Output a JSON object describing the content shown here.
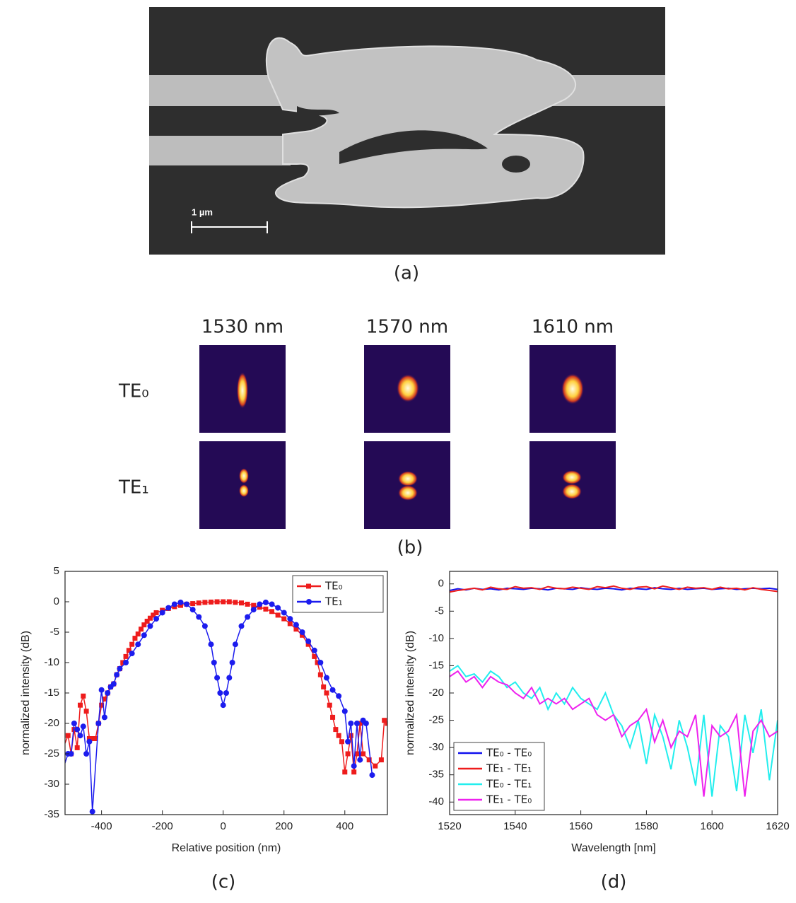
{
  "figure": {
    "panel_labels": [
      "(a)",
      "(b)",
      "(c)",
      "(d)"
    ],
    "scale_bar": "1 µm",
    "wavelengths": [
      "1530 nm",
      "1570 nm",
      "1610 nm"
    ],
    "modes": [
      "TE₀",
      "TE₁"
    ]
  },
  "chart_data": [
    {
      "type": "line",
      "xlabel": "Relative position (nm)",
      "ylabel": "normalized intensity (dB)",
      "xlim": [
        -520,
        540
      ],
      "ylim": [
        -35,
        5
      ],
      "xticks": [
        -400,
        -200,
        0,
        200,
        400
      ],
      "yticks": [
        -35,
        -30,
        -25,
        -20,
        -15,
        -10,
        -5,
        0,
        5
      ],
      "legend": "top-right",
      "series": [
        {
          "name": "TE₀",
          "color": "#ee1c1c",
          "marker": "square",
          "x": [
            -550,
            -510,
            -500,
            -490,
            -480,
            -470,
            -460,
            -450,
            -440,
            -430,
            -420,
            -410,
            -400,
            -390,
            -380,
            -370,
            -360,
            -350,
            -340,
            -330,
            -320,
            -310,
            -300,
            -290,
            -280,
            -270,
            -260,
            -250,
            -240,
            -230,
            -220,
            -200,
            -180,
            -160,
            -140,
            -120,
            -100,
            -80,
            -60,
            -40,
            -20,
            0,
            20,
            40,
            60,
            80,
            100,
            120,
            140,
            160,
            180,
            200,
            220,
            240,
            260,
            280,
            300,
            310,
            320,
            330,
            340,
            350,
            360,
            370,
            380,
            390,
            400,
            410,
            420,
            430,
            440,
            450,
            460,
            480,
            500,
            520,
            530,
            540
          ],
          "values": [
            -27,
            -22,
            -25,
            -21,
            -24,
            -17,
            -15.5,
            -18,
            -22.5,
            -22.5,
            -22.5,
            -20,
            -17,
            -16,
            -15,
            -14,
            -13.5,
            -12,
            -11,
            -10,
            -9,
            -8,
            -7,
            -6,
            -5.3,
            -4.5,
            -3.8,
            -3.2,
            -2.7,
            -2.2,
            -1.8,
            -1.4,
            -1.1,
            -0.8,
            -0.6,
            -0.4,
            -0.3,
            -0.2,
            -0.1,
            -0.05,
            0,
            0,
            0,
            -0.1,
            -0.2,
            -0.4,
            -0.6,
            -0.9,
            -1.2,
            -1.6,
            -2.2,
            -2.8,
            -3.6,
            -4.5,
            -5.5,
            -7,
            -9,
            -10,
            -12,
            -14,
            -15,
            -17,
            -19,
            -21,
            -22,
            -23,
            -28,
            -25,
            -22,
            -28,
            -25,
            -20,
            -25,
            -26,
            -27,
            -26,
            -19.5,
            -20
          ]
        },
        {
          "name": "TE₁",
          "color": "#1c1cee",
          "marker": "circle",
          "x": [
            -540,
            -510,
            -500,
            -490,
            -480,
            -470,
            -460,
            -450,
            -440,
            -430,
            -410,
            -400,
            -390,
            -380,
            -370,
            -360,
            -350,
            -340,
            -320,
            -300,
            -280,
            -260,
            -240,
            -220,
            -200,
            -180,
            -160,
            -140,
            -120,
            -100,
            -80,
            -60,
            -40,
            -30,
            -20,
            -10,
            0,
            10,
            20,
            30,
            40,
            60,
            80,
            100,
            120,
            140,
            160,
            180,
            200,
            220,
            240,
            260,
            280,
            300,
            320,
            340,
            360,
            380,
            400,
            410,
            420,
            430,
            440,
            450,
            460,
            470,
            490
          ],
          "values": [
            -29.5,
            -25,
            -25,
            -20,
            -21,
            -22,
            -20.5,
            -25,
            -23,
            -34.5,
            -20,
            -14.5,
            -19,
            -15,
            -14,
            -13.5,
            -12,
            -11,
            -10,
            -8.5,
            -7,
            -5.5,
            -4,
            -2.8,
            -1.8,
            -1,
            -0.4,
            -0.1,
            -0.4,
            -1.3,
            -2.5,
            -4,
            -7,
            -10,
            -12.5,
            -15,
            -17,
            -15,
            -12.5,
            -10,
            -7,
            -4,
            -2.5,
            -1.3,
            -0.4,
            -0.1,
            -0.4,
            -1,
            -1.8,
            -2.8,
            -3.8,
            -5,
            -6.5,
            -8,
            -10,
            -12.5,
            -14.5,
            -15.5,
            -18,
            -23,
            -20,
            -27,
            -20,
            -26,
            -19.5,
            -20,
            -28.5
          ]
        }
      ]
    },
    {
      "type": "line",
      "xlabel": "Wavelength [nm]",
      "ylabel": "normalized intensity (dB)",
      "xlim": [
        1520,
        1620
      ],
      "ylim": [
        -42.3,
        2.3
      ],
      "xticks": [
        1520,
        1540,
        1560,
        1580,
        1600,
        1620
      ],
      "yticks": [
        0,
        -5,
        -10,
        -15,
        -20,
        -25,
        -30,
        -35,
        -40
      ],
      "legend": "bottom-left",
      "x": [
        1520,
        1522.5,
        1525,
        1527.5,
        1530,
        1532.5,
        1535,
        1537.5,
        1540,
        1542.5,
        1545,
        1547.5,
        1550,
        1552.5,
        1555,
        1557.5,
        1560,
        1562.5,
        1565,
        1567.5,
        1570,
        1572.5,
        1575,
        1577.5,
        1580,
        1582.5,
        1585,
        1587.5,
        1590,
        1592.5,
        1595,
        1597.5,
        1600,
        1602.5,
        1605,
        1607.5,
        1610,
        1612.5,
        1615,
        1617.5,
        1620
      ],
      "series": [
        {
          "name": "TE₀ - TE₀",
          "color": "#1010ee",
          "values": [
            -1.2,
            -0.9,
            -1.1,
            -0.8,
            -1,
            -0.9,
            -1.1,
            -0.8,
            -0.9,
            -1,
            -0.8,
            -0.9,
            -1.1,
            -0.8,
            -0.9,
            -1,
            -0.7,
            -0.9,
            -1,
            -0.8,
            -0.9,
            -1.1,
            -0.8,
            -0.9,
            -1,
            -0.7,
            -0.9,
            -1,
            -0.8,
            -1,
            -0.9,
            -0.8,
            -1,
            -0.9,
            -0.8,
            -1,
            -0.9,
            -0.8,
            -0.9,
            -0.8,
            -1
          ]
        },
        {
          "name": "TE₁ - TE₁",
          "color": "#ee1c1c",
          "values": [
            -1.5,
            -1.2,
            -1,
            -0.8,
            -1.1,
            -0.6,
            -0.9,
            -1,
            -0.5,
            -0.8,
            -0.7,
            -1,
            -0.5,
            -0.8,
            -0.9,
            -0.6,
            -0.8,
            -1,
            -0.5,
            -0.7,
            -0.4,
            -0.8,
            -1,
            -0.6,
            -0.5,
            -0.9,
            -0.4,
            -0.7,
            -1,
            -0.6,
            -0.8,
            -0.7,
            -1,
            -0.6,
            -0.9,
            -0.8,
            -1.1,
            -0.7,
            -1,
            -1.2,
            -1.4
          ]
        },
        {
          "name": "TE₀ - TE₁",
          "color": "#22eeee",
          "values": [
            -16,
            -15,
            -17,
            -16.5,
            -18,
            -16,
            -17,
            -19,
            -18,
            -20,
            -21,
            -19,
            -23,
            -20,
            -22,
            -19,
            -21,
            -22,
            -23,
            -20,
            -24,
            -26,
            -30,
            -25,
            -33,
            -24,
            -28,
            -34,
            -25,
            -30,
            -37,
            -24,
            -39,
            -26,
            -28,
            -38,
            -24,
            -31,
            -23,
            -36,
            -25
          ]
        },
        {
          "name": "TE₁ - TE₀",
          "color": "#ee22ee",
          "values": [
            -17,
            -16,
            -18,
            -17,
            -19,
            -17,
            -18,
            -18.5,
            -20,
            -21,
            -19,
            -22,
            -21,
            -22,
            -21,
            -23,
            -22,
            -21,
            -24,
            -25,
            -24,
            -28,
            -26,
            -25,
            -23,
            -29,
            -25,
            -30,
            -27,
            -28,
            -24,
            -39,
            -26,
            -28,
            -27,
            -24,
            -39,
            -27,
            -25,
            -28,
            -27
          ]
        }
      ]
    }
  ]
}
